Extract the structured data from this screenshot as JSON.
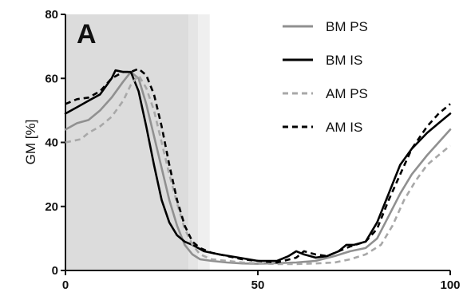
{
  "chart_data": {
    "type": "line",
    "panel_label": "A",
    "ylabel": "GM [%]",
    "xlabel": "",
    "xlim": [
      0,
      100
    ],
    "ylim": [
      0,
      80
    ],
    "xticks": [
      0,
      50,
      100
    ],
    "yticks": [
      0,
      20,
      40,
      60,
      80
    ],
    "grid": false,
    "legend_position": "top-right",
    "shaded_regions": [
      {
        "x0": 0,
        "x1": 32,
        "color": "#dcdcdc"
      },
      {
        "x0": 32,
        "x1": 34.5,
        "color": "#e5e5e5"
      },
      {
        "x0": 34.5,
        "x1": 37.5,
        "color": "#efefef"
      }
    ],
    "series": [
      {
        "name": "BM PS",
        "color": "#909090",
        "dash": "solid",
        "x": [
          0,
          3,
          6,
          9,
          12,
          15,
          17,
          19,
          21,
          23,
          25,
          27,
          29,
          31,
          33,
          35,
          38,
          42,
          46,
          50,
          55,
          60,
          65,
          70,
          74,
          78,
          81,
          84,
          87,
          90,
          94,
          97,
          100
        ],
        "y": [
          44,
          46,
          47,
          50,
          54,
          59,
          62,
          60,
          52,
          42,
          32,
          22,
          14,
          8,
          5,
          3.5,
          3,
          2.5,
          2.2,
          2.1,
          2.3,
          2.5,
          3,
          4.5,
          6,
          7,
          10,
          17,
          24,
          30,
          36,
          40,
          44
        ]
      },
      {
        "name": "BM IS",
        "color": "#000000",
        "dash": "solid",
        "x": [
          0,
          3,
          6,
          9,
          12,
          13,
          15,
          17,
          19,
          21,
          23,
          25,
          27,
          29,
          31,
          33,
          36,
          40,
          45,
          50,
          55,
          58,
          60,
          62,
          65,
          68,
          71,
          73,
          75,
          78,
          81,
          84,
          87,
          90,
          94,
          97,
          100
        ],
        "y": [
          49,
          51,
          53,
          55,
          60,
          62.5,
          62,
          62,
          56,
          45,
          33,
          22,
          15,
          11,
          9,
          8,
          6,
          5,
          4,
          3,
          3,
          4.5,
          6,
          5,
          4,
          4.5,
          6,
          8,
          8,
          9,
          15,
          24,
          33,
          38,
          43,
          46,
          49
        ]
      },
      {
        "name": "AM PS",
        "color": "#a8a8a8",
        "dash": "dashed",
        "x": [
          0,
          2,
          4,
          6,
          9,
          12,
          15,
          17,
          19,
          21,
          23,
          25,
          27,
          29,
          31,
          33,
          35,
          38,
          42,
          46,
          50,
          55,
          60,
          65,
          70,
          74,
          78,
          82,
          85,
          88,
          91,
          94,
          97,
          100
        ],
        "y": [
          40,
          40.5,
          41,
          43,
          45,
          48,
          53,
          58,
          61,
          57,
          50,
          40,
          30,
          21,
          13,
          8,
          5,
          3.5,
          3,
          2.5,
          2.2,
          2,
          2,
          2.2,
          2.5,
          3.5,
          5,
          8,
          14,
          22,
          28,
          33,
          36,
          39
        ]
      },
      {
        "name": "AM IS",
        "color": "#000000",
        "dash": "dashed",
        "x": [
          0,
          3,
          6,
          9,
          12,
          15,
          17,
          19,
          21,
          23,
          25,
          27,
          29,
          31,
          33,
          35,
          38,
          42,
          46,
          50,
          55,
          60,
          62,
          65,
          68,
          71,
          74,
          78,
          81,
          84,
          87,
          90,
          94,
          97,
          100
        ],
        "y": [
          52,
          53.5,
          54,
          56,
          60,
          62,
          62,
          63,
          61,
          55,
          45,
          33,
          22,
          14,
          9,
          7,
          5.5,
          4.5,
          3.5,
          3,
          2.5,
          4,
          6,
          5,
          4.5,
          6,
          7.5,
          9,
          13,
          22,
          30,
          38,
          45,
          49,
          52
        ]
      }
    ]
  }
}
